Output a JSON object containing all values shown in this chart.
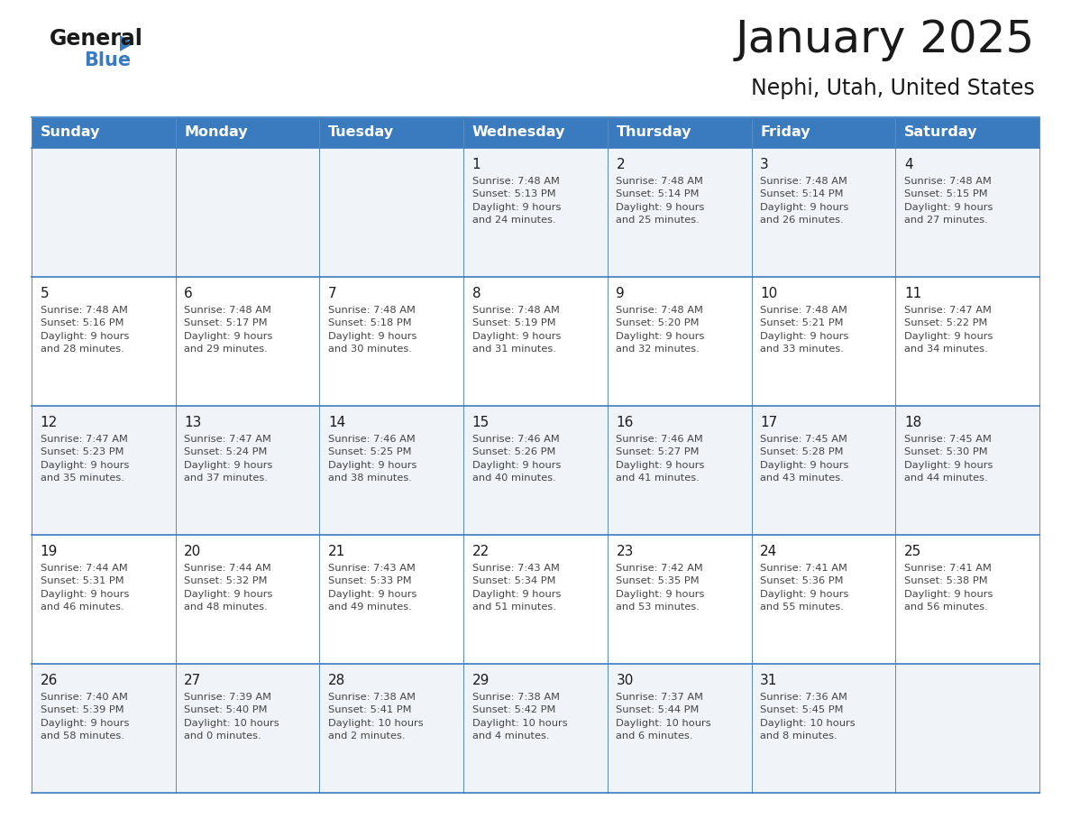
{
  "title": "January 2025",
  "subtitle": "Nephi, Utah, United States",
  "header_color": "#3a7bbf",
  "header_text_color": "#ffffff",
  "cell_bg_light": "#f0f4f8",
  "cell_bg_white": "#ffffff",
  "border_color": "#3a7bbf",
  "grid_line_color": "#c0c8d0",
  "day_headers": [
    "Sunday",
    "Monday",
    "Tuesday",
    "Wednesday",
    "Thursday",
    "Friday",
    "Saturday"
  ],
  "title_color": "#1a1a1a",
  "subtitle_color": "#1a1a1a",
  "cell_text_color": "#444444",
  "day_num_color": "#1a1a1a",
  "calendar_data": [
    [
      {
        "day": "",
        "info": ""
      },
      {
        "day": "",
        "info": ""
      },
      {
        "day": "",
        "info": ""
      },
      {
        "day": "1",
        "info": "Sunrise: 7:48 AM\nSunset: 5:13 PM\nDaylight: 9 hours\nand 24 minutes."
      },
      {
        "day": "2",
        "info": "Sunrise: 7:48 AM\nSunset: 5:14 PM\nDaylight: 9 hours\nand 25 minutes."
      },
      {
        "day": "3",
        "info": "Sunrise: 7:48 AM\nSunset: 5:14 PM\nDaylight: 9 hours\nand 26 minutes."
      },
      {
        "day": "4",
        "info": "Sunrise: 7:48 AM\nSunset: 5:15 PM\nDaylight: 9 hours\nand 27 minutes."
      }
    ],
    [
      {
        "day": "5",
        "info": "Sunrise: 7:48 AM\nSunset: 5:16 PM\nDaylight: 9 hours\nand 28 minutes."
      },
      {
        "day": "6",
        "info": "Sunrise: 7:48 AM\nSunset: 5:17 PM\nDaylight: 9 hours\nand 29 minutes."
      },
      {
        "day": "7",
        "info": "Sunrise: 7:48 AM\nSunset: 5:18 PM\nDaylight: 9 hours\nand 30 minutes."
      },
      {
        "day": "8",
        "info": "Sunrise: 7:48 AM\nSunset: 5:19 PM\nDaylight: 9 hours\nand 31 minutes."
      },
      {
        "day": "9",
        "info": "Sunrise: 7:48 AM\nSunset: 5:20 PM\nDaylight: 9 hours\nand 32 minutes."
      },
      {
        "day": "10",
        "info": "Sunrise: 7:48 AM\nSunset: 5:21 PM\nDaylight: 9 hours\nand 33 minutes."
      },
      {
        "day": "11",
        "info": "Sunrise: 7:47 AM\nSunset: 5:22 PM\nDaylight: 9 hours\nand 34 minutes."
      }
    ],
    [
      {
        "day": "12",
        "info": "Sunrise: 7:47 AM\nSunset: 5:23 PM\nDaylight: 9 hours\nand 35 minutes."
      },
      {
        "day": "13",
        "info": "Sunrise: 7:47 AM\nSunset: 5:24 PM\nDaylight: 9 hours\nand 37 minutes."
      },
      {
        "day": "14",
        "info": "Sunrise: 7:46 AM\nSunset: 5:25 PM\nDaylight: 9 hours\nand 38 minutes."
      },
      {
        "day": "15",
        "info": "Sunrise: 7:46 AM\nSunset: 5:26 PM\nDaylight: 9 hours\nand 40 minutes."
      },
      {
        "day": "16",
        "info": "Sunrise: 7:46 AM\nSunset: 5:27 PM\nDaylight: 9 hours\nand 41 minutes."
      },
      {
        "day": "17",
        "info": "Sunrise: 7:45 AM\nSunset: 5:28 PM\nDaylight: 9 hours\nand 43 minutes."
      },
      {
        "day": "18",
        "info": "Sunrise: 7:45 AM\nSunset: 5:30 PM\nDaylight: 9 hours\nand 44 minutes."
      }
    ],
    [
      {
        "day": "19",
        "info": "Sunrise: 7:44 AM\nSunset: 5:31 PM\nDaylight: 9 hours\nand 46 minutes."
      },
      {
        "day": "20",
        "info": "Sunrise: 7:44 AM\nSunset: 5:32 PM\nDaylight: 9 hours\nand 48 minutes."
      },
      {
        "day": "21",
        "info": "Sunrise: 7:43 AM\nSunset: 5:33 PM\nDaylight: 9 hours\nand 49 minutes."
      },
      {
        "day": "22",
        "info": "Sunrise: 7:43 AM\nSunset: 5:34 PM\nDaylight: 9 hours\nand 51 minutes."
      },
      {
        "day": "23",
        "info": "Sunrise: 7:42 AM\nSunset: 5:35 PM\nDaylight: 9 hours\nand 53 minutes."
      },
      {
        "day": "24",
        "info": "Sunrise: 7:41 AM\nSunset: 5:36 PM\nDaylight: 9 hours\nand 55 minutes."
      },
      {
        "day": "25",
        "info": "Sunrise: 7:41 AM\nSunset: 5:38 PM\nDaylight: 9 hours\nand 56 minutes."
      }
    ],
    [
      {
        "day": "26",
        "info": "Sunrise: 7:40 AM\nSunset: 5:39 PM\nDaylight: 9 hours\nand 58 minutes."
      },
      {
        "day": "27",
        "info": "Sunrise: 7:39 AM\nSunset: 5:40 PM\nDaylight: 10 hours\nand 0 minutes."
      },
      {
        "day": "28",
        "info": "Sunrise: 7:38 AM\nSunset: 5:41 PM\nDaylight: 10 hours\nand 2 minutes."
      },
      {
        "day": "29",
        "info": "Sunrise: 7:38 AM\nSunset: 5:42 PM\nDaylight: 10 hours\nand 4 minutes."
      },
      {
        "day": "30",
        "info": "Sunrise: 7:37 AM\nSunset: 5:44 PM\nDaylight: 10 hours\nand 6 minutes."
      },
      {
        "day": "31",
        "info": "Sunrise: 7:36 AM\nSunset: 5:45 PM\nDaylight: 10 hours\nand 8 minutes."
      },
      {
        "day": "",
        "info": ""
      }
    ]
  ]
}
